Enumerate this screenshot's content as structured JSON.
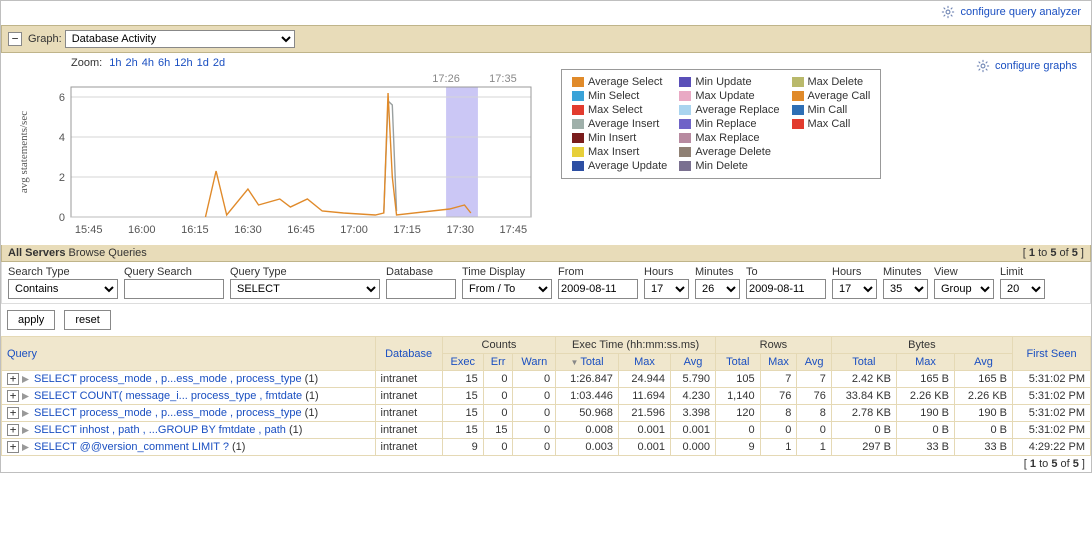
{
  "top_links": {
    "configure_query_analyzer": "configure query analyzer",
    "configure_graphs": "configure graphs"
  },
  "graph_header": {
    "label": "Graph:",
    "selected": "Database Activity"
  },
  "zoom": {
    "label": "Zoom:",
    "options": [
      "1h",
      "2h",
      "4h",
      "6h",
      "12h",
      "1d",
      "2d"
    ]
  },
  "chart": {
    "y_label": "avg statements/sec",
    "xlim": [
      "15:40",
      "17:50"
    ],
    "ylim": [
      0,
      6
    ],
    "ytick_step": 2,
    "x_ticks": [
      "15:45",
      "16:00",
      "16:15",
      "16:30",
      "16:45",
      "17:00",
      "17:15",
      "17:30",
      "17:45"
    ],
    "highlight_band": {
      "from_label": "17:26",
      "to_label": "17:35",
      "color": "#a8a2ef"
    },
    "background": "#ffffff",
    "grid_color": "#d6d6d6",
    "series": {
      "orange": {
        "color": "#e08a2a",
        "points": [
          [
            16.3,
            0
          ],
          [
            16.35,
            2.3
          ],
          [
            16.4,
            0.1
          ],
          [
            16.5,
            1.4
          ],
          [
            16.55,
            0.6
          ],
          [
            16.65,
            0.9
          ],
          [
            16.7,
            0.5
          ],
          [
            16.78,
            0.9
          ],
          [
            16.85,
            0.3
          ],
          [
            16.95,
            0.2
          ],
          [
            17.1,
            0.1
          ],
          [
            17.14,
            0.2
          ],
          [
            17.16,
            6.2
          ],
          [
            17.18,
            2.0
          ],
          [
            17.2,
            0.1
          ],
          [
            17.45,
            0.4
          ],
          [
            17.52,
            0.6
          ],
          [
            17.55,
            0.2
          ]
        ]
      },
      "gray": {
        "color": "#9aa0a0",
        "points": [
          [
            17.14,
            0.2
          ],
          [
            17.16,
            5.8
          ],
          [
            17.18,
            5.6
          ],
          [
            17.2,
            0.3
          ]
        ]
      }
    }
  },
  "legend": {
    "items": [
      {
        "label": "Average Select",
        "color": "#e08a2a"
      },
      {
        "label": "Min Update",
        "color": "#5a4fb8"
      },
      {
        "label": "Max Delete",
        "color": "#b9b96b"
      },
      {
        "label": "Min Select",
        "color": "#3aa3d8"
      },
      {
        "label": "Max Update",
        "color": "#e9a9c4"
      },
      {
        "label": "Average Call",
        "color": "#e08a2a"
      },
      {
        "label": "Max Select",
        "color": "#e23b2e"
      },
      {
        "label": "Average Replace",
        "color": "#a9d4ef"
      },
      {
        "label": "Min Call",
        "color": "#2e6fb5"
      },
      {
        "label": "Average Insert",
        "color": "#9fb0aa"
      },
      {
        "label": "Min Replace",
        "color": "#6f63c7"
      },
      {
        "label": "Max Call",
        "color": "#e23b2e"
      },
      {
        "label": "Min Insert",
        "color": "#7a1c1c"
      },
      {
        "label": "Max Replace",
        "color": "#b78aa0"
      },
      {
        "label": "",
        "color": ""
      },
      {
        "label": "Max Insert",
        "color": "#e7cf3a"
      },
      {
        "label": "Average Delete",
        "color": "#8f8074"
      },
      {
        "label": "",
        "color": ""
      },
      {
        "label": "Average Update",
        "color": "#2d4fa3"
      },
      {
        "label": "Min Delete",
        "color": "#7a7090"
      },
      {
        "label": "",
        "color": ""
      }
    ]
  },
  "browse_bar": {
    "bold": "All Servers",
    "text": "Browse Queries",
    "range": "[ 1 to 5 of 5 ]"
  },
  "filters": {
    "search_type": {
      "label": "Search Type",
      "value": "Contains"
    },
    "query_search": {
      "label": "Query Search",
      "value": ""
    },
    "query_type": {
      "label": "Query Type",
      "value": "SELECT"
    },
    "database": {
      "label": "Database",
      "value": ""
    },
    "time_display": {
      "label": "Time Display",
      "value": "From / To"
    },
    "from": {
      "label": "From",
      "value": "2009-08-11"
    },
    "hours1": {
      "label": "Hours",
      "value": "17"
    },
    "minutes1": {
      "label": "Minutes",
      "value": "26"
    },
    "to": {
      "label": "To",
      "value": "2009-08-11"
    },
    "hours2": {
      "label": "Hours",
      "value": "17"
    },
    "minutes2": {
      "label": "Minutes",
      "value": "35"
    },
    "view": {
      "label": "View",
      "value": "Group"
    },
    "limit": {
      "label": "Limit",
      "value": "20"
    }
  },
  "buttons": {
    "apply": "apply",
    "reset": "reset"
  },
  "table": {
    "group_headers": {
      "query": "Query",
      "database": "Database",
      "counts": "Counts",
      "exec_time": "Exec Time (hh:mm:ss.ms)",
      "rows": "Rows",
      "bytes": "Bytes",
      "first_seen": "First Seen"
    },
    "sub_headers": {
      "exec": "Exec",
      "err": "Err",
      "warn": "Warn",
      "e_total": "Total",
      "e_max": "Max",
      "e_avg": "Avg",
      "r_total": "Total",
      "r_max": "Max",
      "r_avg": "Avg",
      "b_total": "Total",
      "b_max": "Max",
      "b_avg": "Avg"
    },
    "rows": [
      {
        "q": "SELECT process_mode , p...ess_mode , process_type",
        "n": "(1)",
        "db": "intranet",
        "exec": "15",
        "err": "0",
        "warn": "0",
        "et": "1:26.847",
        "em": "24.944",
        "ea": "5.790",
        "rt": "105",
        "rm": "7",
        "ra": "7",
        "bt": "2.42 KB",
        "bm": "165 B",
        "ba": "165 B",
        "fs": "5:31:02 PM"
      },
      {
        "q": "SELECT COUNT( message_i... process_type , fmtdate",
        "n": "(1)",
        "db": "intranet",
        "exec": "15",
        "err": "0",
        "warn": "0",
        "et": "1:03.446",
        "em": "11.694",
        "ea": "4.230",
        "rt": "1,140",
        "rm": "76",
        "ra": "76",
        "bt": "33.84 KB",
        "bm": "2.26 KB",
        "ba": "2.26 KB",
        "fs": "5:31:02 PM"
      },
      {
        "q": "SELECT process_mode , p...ess_mode , process_type",
        "n": "(1)",
        "db": "intranet",
        "exec": "15",
        "err": "0",
        "warn": "0",
        "et": "50.968",
        "em": "21.596",
        "ea": "3.398",
        "rt": "120",
        "rm": "8",
        "ra": "8",
        "bt": "2.78 KB",
        "bm": "190 B",
        "ba": "190 B",
        "fs": "5:31:02 PM"
      },
      {
        "q": "SELECT inhost , path , ...GROUP BY fmtdate , path",
        "n": "(1)",
        "db": "intranet",
        "exec": "15",
        "err": "15",
        "warn": "0",
        "et": "0.008",
        "em": "0.001",
        "ea": "0.001",
        "rt": "0",
        "rm": "0",
        "ra": "0",
        "bt": "0 B",
        "bm": "0 B",
        "ba": "0 B",
        "fs": "5:31:02 PM"
      },
      {
        "q": "SELECT @@version_comment LIMIT ?",
        "n": "(1)",
        "db": "intranet",
        "exec": "9",
        "err": "0",
        "warn": "0",
        "et": "0.003",
        "em": "0.001",
        "ea": "0.000",
        "rt": "9",
        "rm": "1",
        "ra": "1",
        "bt": "297 B",
        "bm": "33 B",
        "ba": "33 B",
        "fs": "4:29:22 PM"
      }
    ]
  },
  "pager": "[ 1 to 5 of 5 ]"
}
